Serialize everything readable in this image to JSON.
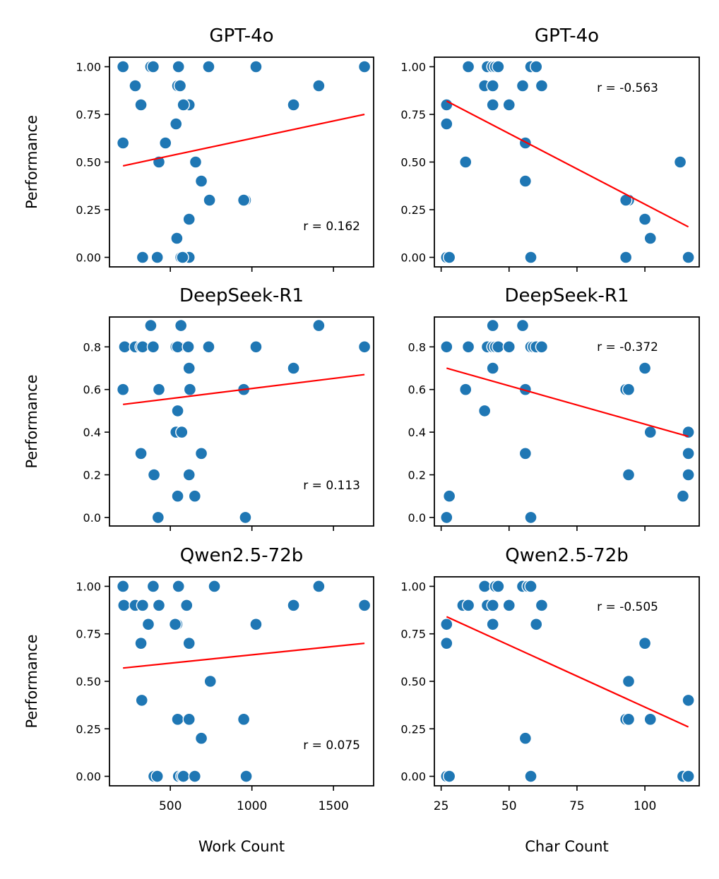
{
  "chart_data": [
    {
      "type": "scatter",
      "title": "GPT-4o",
      "xlabel": "",
      "ylabel": "Performance",
      "xlim": [
        127,
        1746
      ],
      "ylim": [
        -0.05,
        1.05
      ],
      "xticks": [
        500,
        1000,
        1500
      ],
      "xticklabels": [],
      "yticks": [
        0,
        0.25,
        0.5,
        0.75,
        1.0
      ],
      "yticklabels": [
        "0.00",
        "0.25",
        "0.50",
        "0.75",
        "1.00"
      ],
      "x": [
        210,
        285,
        320,
        400,
        380,
        395,
        550,
        545,
        560,
        530,
        470,
        615,
        735,
        1025,
        1410,
        1690,
        1255,
        210,
        580,
        535,
        430,
        740,
        690,
        655,
        615,
        960,
        950,
        540,
        330,
        415,
        420,
        565,
        580,
        600,
        615,
        575
      ],
      "y": [
        1.0,
        0.9,
        0.8,
        1.0,
        1.0,
        1.0,
        1.0,
        0.9,
        0.9,
        0.7,
        0.6,
        0.8,
        1.0,
        1.0,
        0.9,
        1.0,
        0.8,
        0.6,
        0.8,
        0.7,
        0.5,
        0.3,
        0.4,
        0.5,
        0.2,
        0.3,
        0.3,
        0.1,
        0.0,
        0.0,
        0.0,
        0.0,
        0.0,
        0.0,
        0.0,
        0.0
      ],
      "fit": {
        "x": [
          210,
          1690
        ],
        "y": [
          0.48,
          0.75
        ]
      },
      "r_label": "r = 0.162"
    },
    {
      "type": "scatter",
      "title": "GPT-4o",
      "xlabel": "",
      "ylabel": "",
      "xlim": [
        22.5,
        120
      ],
      "ylim": [
        -0.05,
        1.05
      ],
      "xticks": [
        25,
        50,
        75,
        100
      ],
      "xticklabels": [],
      "yticks": [
        0,
        0.25,
        0.5,
        0.75,
        1.0
      ],
      "yticklabels": [
        "0.00",
        "0.25",
        "0.50",
        "0.75",
        "1.00"
      ],
      "x": [
        27,
        27,
        35,
        42,
        44,
        45,
        46,
        41,
        44,
        55,
        58,
        60,
        62,
        44,
        50,
        56,
        56,
        34,
        94,
        93,
        100,
        102,
        113,
        116,
        27,
        28,
        58,
        93
      ],
      "y": [
        0.8,
        0.7,
        1.0,
        1.0,
        1.0,
        1.0,
        1.0,
        0.9,
        0.9,
        0.9,
        1.0,
        1.0,
        0.9,
        0.8,
        0.8,
        0.6,
        0.4,
        0.5,
        0.3,
        0.3,
        0.2,
        0.1,
        0.5,
        0.0,
        0.0,
        0.0,
        0.0,
        0.0
      ],
      "fit": {
        "x": [
          27,
          116
        ],
        "y": [
          0.82,
          0.16
        ]
      },
      "r_label": "r = -0.563"
    },
    {
      "type": "scatter",
      "title": "DeepSeek-R1",
      "xlabel": "",
      "ylabel": "Performance",
      "xlim": [
        127,
        1746
      ],
      "ylim": [
        -0.04,
        0.94
      ],
      "xticks": [
        500,
        1000,
        1500
      ],
      "xticklabels": [],
      "yticks": [
        0,
        0.2,
        0.4,
        0.6,
        0.8
      ],
      "yticklabels": [
        "0.0",
        "0.2",
        "0.4",
        "0.6",
        "0.8"
      ],
      "x": [
        220,
        285,
        320,
        330,
        395,
        380,
        540,
        555,
        565,
        535,
        545,
        610,
        735,
        1025,
        1410,
        1690,
        1255,
        210,
        430,
        615,
        620,
        950,
        545,
        535,
        570,
        690,
        320,
        400,
        615,
        545,
        650,
        425,
        960
      ],
      "y": [
        0.8,
        0.8,
        0.8,
        0.8,
        0.8,
        0.9,
        0.8,
        0.8,
        0.9,
        0.8,
        0.8,
        0.8,
        0.8,
        0.8,
        0.9,
        0.8,
        0.7,
        0.6,
        0.6,
        0.7,
        0.6,
        0.6,
        0.5,
        0.4,
        0.4,
        0.3,
        0.3,
        0.2,
        0.2,
        0.1,
        0.1,
        0.0,
        0.0
      ],
      "fit": {
        "x": [
          210,
          1690
        ],
        "y": [
          0.53,
          0.67
        ]
      },
      "r_label": "r = 0.113"
    },
    {
      "type": "scatter",
      "title": "DeepSeek-R1",
      "xlabel": "",
      "ylabel": "",
      "xlim": [
        22.5,
        120
      ],
      "ylim": [
        -0.04,
        0.94
      ],
      "xticks": [
        25,
        50,
        75,
        100
      ],
      "xticklabels": [],
      "yticks": [
        0,
        0.2,
        0.4,
        0.6,
        0.8
      ],
      "yticklabels": [
        "0.0",
        "0.2",
        "0.4",
        "0.6",
        "0.8"
      ],
      "x": [
        27,
        35,
        42,
        44,
        45,
        46,
        50,
        44,
        55,
        58,
        59,
        60,
        62,
        44,
        56,
        34,
        41,
        100,
        93,
        94,
        102,
        116,
        116,
        116,
        56,
        94,
        28,
        114,
        27,
        58
      ],
      "y": [
        0.8,
        0.8,
        0.8,
        0.8,
        0.8,
        0.8,
        0.8,
        0.9,
        0.9,
        0.8,
        0.8,
        0.8,
        0.8,
        0.7,
        0.6,
        0.6,
        0.5,
        0.7,
        0.6,
        0.6,
        0.4,
        0.4,
        0.3,
        0.2,
        0.3,
        0.2,
        0.1,
        0.1,
        0.0,
        0.0
      ],
      "fit": {
        "x": [
          27,
          116
        ],
        "y": [
          0.7,
          0.38
        ]
      },
      "r_label": "r = -0.372"
    },
    {
      "type": "scatter",
      "title": "Qwen2.5-72b",
      "xlabel": "Work Count",
      "ylabel": "Performance",
      "xlim": [
        127,
        1746
      ],
      "ylim": [
        -0.05,
        1.05
      ],
      "xticks": [
        500,
        1000,
        1500
      ],
      "xticklabels": [
        "500",
        "1000",
        "1500"
      ],
      "yticks": [
        0,
        0.25,
        0.5,
        0.75,
        1.0
      ],
      "yticklabels": [
        "0.00",
        "0.25",
        "0.50",
        "0.75",
        "1.00"
      ],
      "x": [
        210,
        215,
        285,
        330,
        395,
        430,
        555,
        550,
        540,
        600,
        770,
        1410,
        1690,
        1255,
        365,
        530,
        615,
        1025,
        320,
        745,
        325,
        545,
        615,
        950,
        690,
        400,
        420,
        550,
        570,
        580,
        650,
        965
      ],
      "y": [
        1.0,
        0.9,
        0.9,
        0.9,
        1.0,
        0.9,
        1.0,
        1.0,
        0.8,
        0.9,
        1.0,
        1.0,
        0.9,
        0.9,
        0.8,
        0.8,
        0.7,
        0.8,
        0.7,
        0.5,
        0.4,
        0.3,
        0.3,
        0.3,
        0.2,
        0.0,
        0.0,
        0.0,
        0.0,
        0.0,
        0.0,
        0.0
      ],
      "fit": {
        "x": [
          210,
          1690
        ],
        "y": [
          0.57,
          0.7
        ]
      },
      "r_label": "r = 0.075"
    },
    {
      "type": "scatter",
      "title": "Qwen2.5-72b",
      "xlabel": "Char Count",
      "ylabel": "",
      "xlim": [
        22.5,
        120
      ],
      "ylim": [
        -0.05,
        1.05
      ],
      "xticks": [
        25,
        50,
        75,
        100
      ],
      "xticklabels": [
        "25",
        "50",
        "75",
        "100"
      ],
      "yticks": [
        0,
        0.25,
        0.5,
        0.75,
        1.0
      ],
      "yticklabels": [
        "0.00",
        "0.25",
        "0.50",
        "0.75",
        "1.00"
      ],
      "x": [
        33,
        35,
        41,
        42,
        44,
        45,
        46,
        50,
        55,
        57,
        58,
        62,
        27,
        44,
        60,
        27,
        100,
        94,
        93,
        94,
        102,
        116,
        56,
        27,
        28,
        58,
        114,
        116
      ],
      "y": [
        0.9,
        0.9,
        1.0,
        0.9,
        0.9,
        1.0,
        1.0,
        0.9,
        1.0,
        1.0,
        1.0,
        0.9,
        0.8,
        0.8,
        0.8,
        0.7,
        0.7,
        0.5,
        0.3,
        0.3,
        0.3,
        0.4,
        0.2,
        0.0,
        0.0,
        0.0,
        0.0,
        0.0
      ],
      "fit": {
        "x": [
          27,
          116
        ],
        "y": [
          0.84,
          0.26
        ]
      },
      "r_label": "r = -0.505"
    }
  ]
}
